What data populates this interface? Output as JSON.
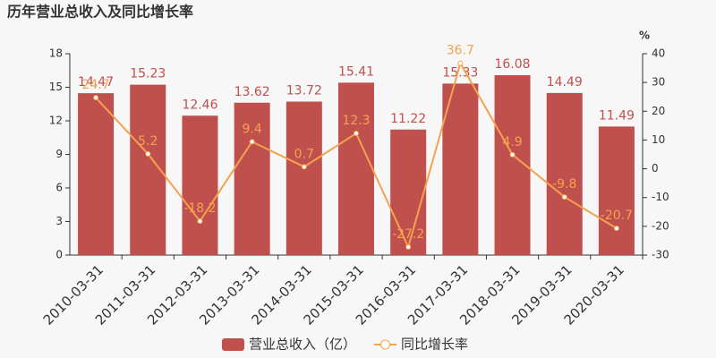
{
  "chart_data": {
    "type": "bar-line",
    "title": "历年营业总收入及同比增长率",
    "y2_label": "%",
    "categories": [
      "2010-03-31",
      "2011-03-31",
      "2012-03-31",
      "2013-03-31",
      "2014-03-31",
      "2015-03-31",
      "2016-03-31",
      "2017-03-31",
      "2018-03-31",
      "2019-03-31",
      "2020-03-31"
    ],
    "series": [
      {
        "name": "营业总收入（亿）",
        "type": "bar",
        "color": "#c0504d",
        "values": [
          14.47,
          15.23,
          12.46,
          13.62,
          13.72,
          15.41,
          11.22,
          15.33,
          16.08,
          14.49,
          11.49
        ]
      },
      {
        "name": "同比增长率",
        "type": "line",
        "axis": "y2",
        "color": "#f4a24e",
        "values": [
          24.7,
          5.2,
          -18.2,
          9.4,
          0.7,
          12.3,
          -27.2,
          36.7,
          4.9,
          -9.8,
          -20.7
        ]
      }
    ],
    "ylim": [
      0,
      18
    ],
    "yticks": [
      0,
      3,
      6,
      9,
      12,
      15,
      18
    ],
    "y2lim": [
      -30,
      40
    ],
    "y2ticks": [
      -30,
      -20,
      -10,
      0,
      10,
      20,
      30,
      40
    ]
  }
}
